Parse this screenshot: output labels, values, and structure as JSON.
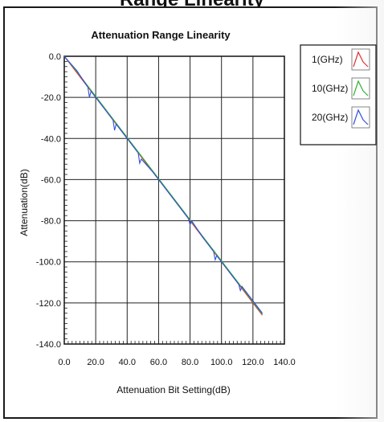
{
  "header_fragment": "Range Linearity",
  "chart_data": {
    "type": "line",
    "title": "Attenuation Range Linearity",
    "xlabel": "Attenuation Bit Setting(dB)",
    "ylabel": "Attenuation(dB)",
    "xlim": [
      0,
      140
    ],
    "ylim": [
      -140,
      0
    ],
    "x_ticks": [
      "0.0",
      "20.0",
      "40.0",
      "60.0",
      "80.0",
      "100.0",
      "120.0",
      "140.0"
    ],
    "y_ticks": [
      "0.0",
      "-20.0",
      "-40.0",
      "-60.0",
      "-80.0",
      "-100.0",
      "-120.0",
      "-140.0"
    ],
    "grid": true,
    "legend_position": "right",
    "series": [
      {
        "name": "1(GHz)",
        "color": "#e03030",
        "x": [
          0,
          8,
          16,
          24,
          32,
          40,
          48,
          56,
          64,
          72,
          80,
          88,
          96,
          104,
          112,
          120,
          126
        ],
        "y": [
          0,
          -8,
          -16,
          -24,
          -32,
          -40,
          -48,
          -56,
          -64,
          -72,
          -80,
          -88,
          -96,
          -104,
          -112,
          -120,
          -126
        ]
      },
      {
        "name": "10(GHz)",
        "color": "#30b030",
        "x": [
          0,
          8,
          16,
          24,
          32,
          40,
          48,
          56,
          64,
          72,
          80,
          88,
          96,
          104,
          112,
          120,
          126
        ],
        "y": [
          0,
          -7.5,
          -15.5,
          -23.5,
          -31.5,
          -39.5,
          -47.5,
          -55.5,
          -63.5,
          -71.5,
          -79.5,
          -87.5,
          -95.5,
          -103.5,
          -111.5,
          -119.5,
          -125.5
        ]
      },
      {
        "name": "20(GHz)",
        "color": "#3050e0",
        "x": [
          0,
          8,
          15,
          16,
          17,
          24,
          31,
          32,
          33,
          40,
          47,
          48,
          49,
          56,
          64,
          72,
          79,
          80,
          81,
          88,
          95,
          96,
          97,
          104,
          111,
          112,
          113,
          120,
          126
        ],
        "y": [
          0,
          -7,
          -15,
          -20,
          -17,
          -24,
          -31,
          -36,
          -33,
          -40,
          -47,
          -52,
          -50,
          -56,
          -64,
          -72,
          -79,
          -82,
          -80,
          -88,
          -95,
          -99,
          -97,
          -104,
          -111,
          -114,
          -112,
          -119,
          -125
        ]
      }
    ]
  }
}
